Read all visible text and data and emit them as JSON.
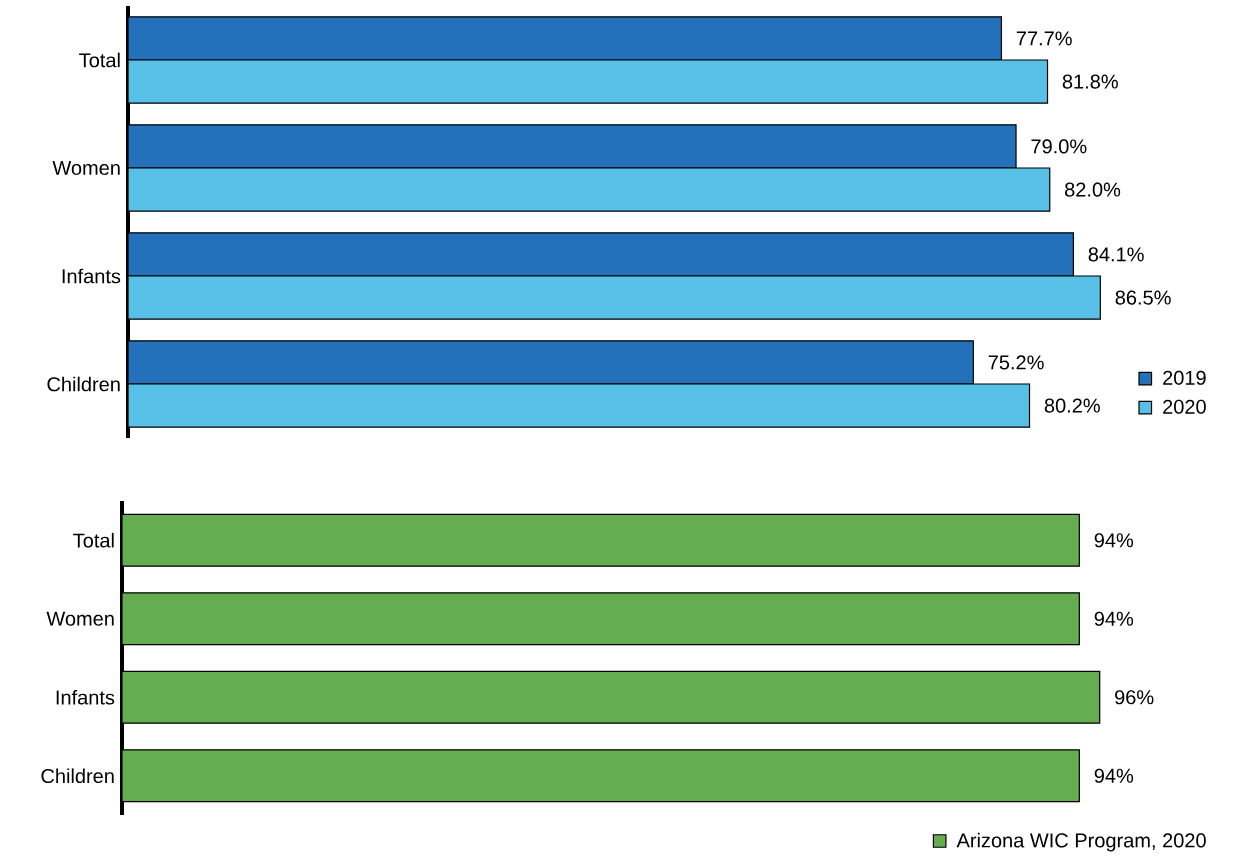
{
  "chart_data": [
    {
      "type": "bar",
      "orientation": "horizontal",
      "categories": [
        "Total",
        "Women",
        "Infants",
        "Children"
      ],
      "series": [
        {
          "name": "2019",
          "color": "#2471bb",
          "values": [
            77.7,
            79.0,
            84.1,
            75.2
          ],
          "value_labels": [
            "77.7%",
            "79.0%",
            "84.1%",
            "75.2%"
          ]
        },
        {
          "name": "2020",
          "color": "#58c0e6",
          "values": [
            81.8,
            82.0,
            86.5,
            80.2
          ],
          "value_labels": [
            "81.8%",
            "82.0%",
            "86.5%",
            "80.2%"
          ]
        }
      ],
      "tick_labels": "y",
      "legend": "bottom right"
    },
    {
      "type": "bar",
      "orientation": "horizontal",
      "categories": [
        "Total",
        "Women",
        "Infants",
        "Children"
      ],
      "series": [
        {
          "name": "Arizona WIC Program, 2020",
          "color": "#65ad51",
          "values": [
            94,
            94,
            96,
            94
          ],
          "value_labels": [
            "94%",
            "94%",
            "96%",
            "94%"
          ]
        }
      ],
      "tick_labels": "y",
      "legend": "bottom"
    }
  ]
}
